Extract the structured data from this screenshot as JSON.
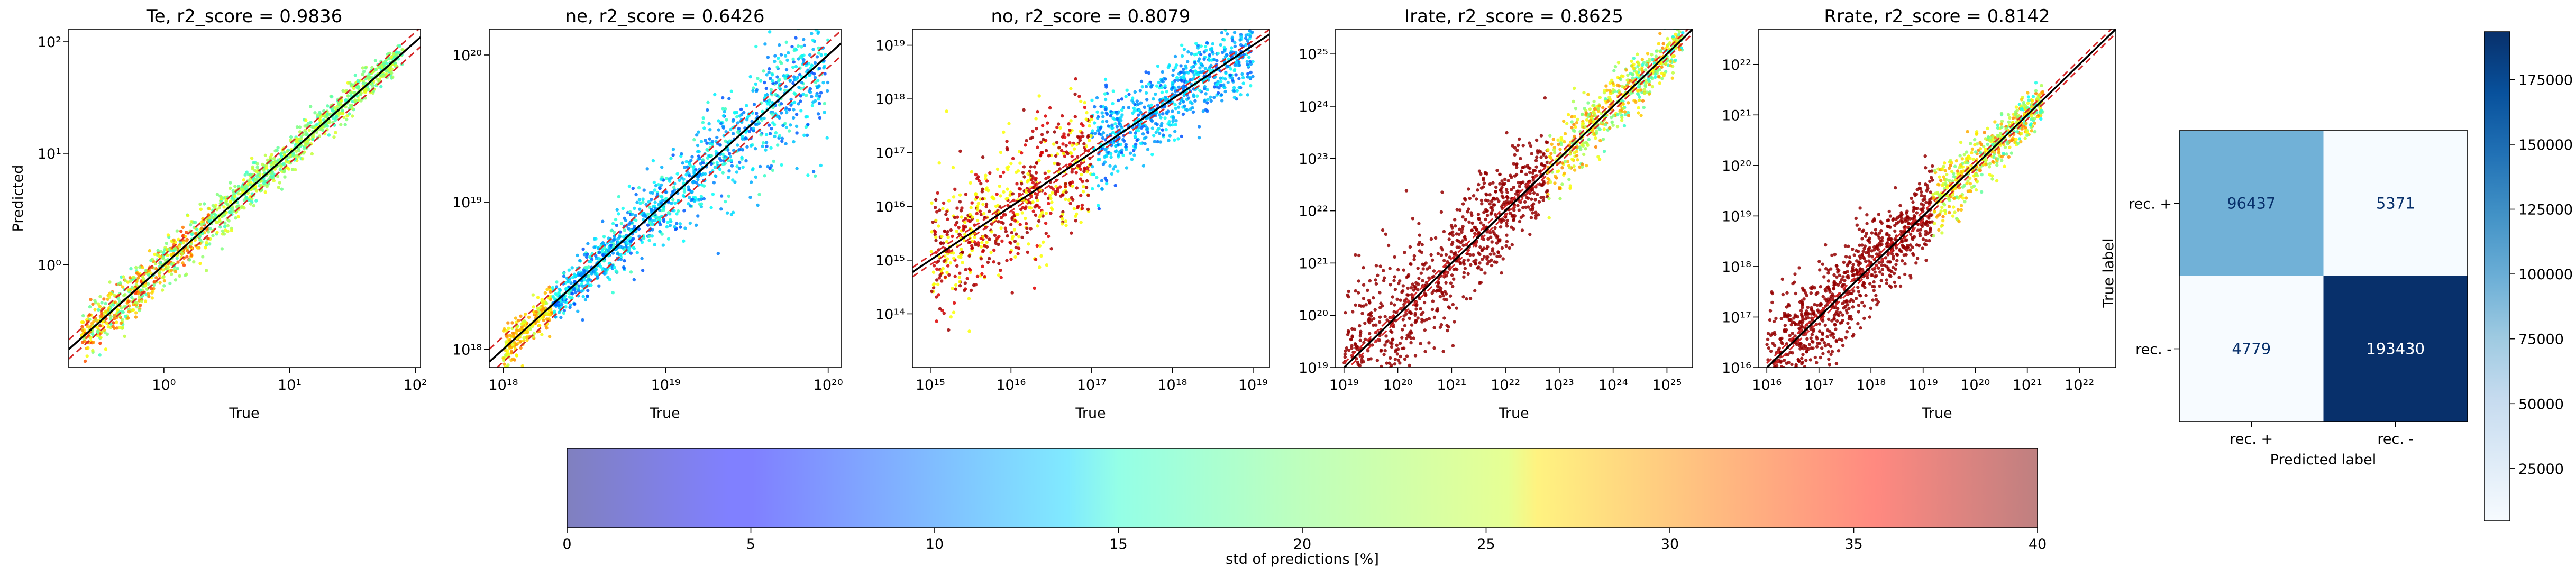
{
  "chart_data": [
    {
      "type": "scatter",
      "title": "Te, r2_score = 0.9836",
      "xlabel": "True",
      "ylabel": "Predicted",
      "xscale": "log",
      "yscale": "log",
      "xlim": [
        0.175,
        110
      ],
      "ylim": [
        0.12,
        130
      ],
      "xticks": [
        {
          "v": 1,
          "label": "10⁰"
        },
        {
          "v": 10,
          "label": "10¹"
        },
        {
          "v": 100,
          "label": "10²"
        }
      ],
      "yticks": [
        {
          "v": 1,
          "label": "10⁰"
        },
        {
          "v": 10,
          "label": "10¹"
        },
        {
          "v": 100,
          "label": "10²"
        }
      ],
      "data_range": [
        0.22,
        80
      ],
      "point_spread_log": 0.1,
      "point_color_levels": [
        0.82,
        0.55,
        0.42
      ],
      "guide_lines": {
        "identity": "black",
        "offset": "red dashed"
      }
    },
    {
      "type": "scatter",
      "title": "ne, r2_score = 0.6426",
      "xlabel": "True",
      "ylabel": "",
      "xscale": "log",
      "yscale": "log",
      "xlim": [
        8.2e+17,
        1.2e+20
      ],
      "ylim": [
        7.5e+17,
        1.5e+20
      ],
      "xticks": [
        {
          "v": 1e+18,
          "label": "10¹⁸"
        },
        {
          "v": 1e+19,
          "label": "10¹⁹"
        },
        {
          "v": 1e+20,
          "label": "10²⁰"
        }
      ],
      "yticks": [
        {
          "v": 1e+18,
          "label": "10¹⁸"
        },
        {
          "v": 1e+19,
          "label": "10¹⁹"
        },
        {
          "v": 1e+20,
          "label": "10²⁰"
        }
      ],
      "data_range": [
        1e+18,
        1e+20
      ],
      "point_spread_log": 0.12,
      "point_color_levels": [
        0.3,
        0.55,
        0.2
      ],
      "guide_lines": {
        "identity": "black",
        "offset": "red dashed"
      }
    },
    {
      "type": "scatter",
      "title": "no, r2_score = 0.8079",
      "xlabel": "True",
      "ylabel": "",
      "xscale": "log",
      "yscale": "log",
      "xlim": [
        600000000000000.0,
        1.6e+19
      ],
      "ylim": [
        10000000000000.0,
        2e+19
      ],
      "xticks": [
        {
          "v": 1000000000000000.0,
          "label": "10¹⁵"
        },
        {
          "v": 1e+16,
          "label": "10¹⁶"
        },
        {
          "v": 1e+17,
          "label": "10¹⁷"
        },
        {
          "v": 1e+18,
          "label": "10¹⁸"
        },
        {
          "v": 1e+19,
          "label": "10¹⁹"
        }
      ],
      "yticks": [
        {
          "v": 100000000000000.0,
          "label": "10¹⁴"
        },
        {
          "v": 1000000000000000.0,
          "label": "10¹⁵"
        },
        {
          "v": 1e+16,
          "label": "10¹⁶"
        },
        {
          "v": 1e+17,
          "label": "10¹⁷"
        },
        {
          "v": 1e+18,
          "label": "10¹⁸"
        },
        {
          "v": 1e+19,
          "label": "10¹⁹"
        }
      ],
      "data_range": [
        1000000000000000.0,
        1e+19
      ],
      "point_spread_log": 0.35,
      "point_color_levels": [
        0.2,
        0.62,
        0.9
      ],
      "guide_lines": {
        "identity": "black",
        "offset": "red dashed"
      }
    },
    {
      "type": "scatter",
      "title": "Irate, r2_score = 0.8625",
      "xlabel": "True",
      "ylabel": "",
      "xscale": "log",
      "yscale": "log",
      "xlim": [
        7e+18,
        3e+25
      ],
      "ylim": [
        1e+19,
        3e+25
      ],
      "xticks": [
        {
          "v": 1e+19,
          "label": "10¹⁹"
        },
        {
          "v": 1e+20,
          "label": "10²⁰"
        },
        {
          "v": 1e+21,
          "label": "10²¹"
        },
        {
          "v": 1e+22,
          "label": "10²²"
        },
        {
          "v": 1e+23,
          "label": "10²³"
        },
        {
          "v": 1e+24,
          "label": "10²⁴"
        },
        {
          "v": 1e+25,
          "label": "10²⁵"
        }
      ],
      "yticks": [
        {
          "v": 1e+19,
          "label": "10¹⁹"
        },
        {
          "v": 1e+20,
          "label": "10²⁰"
        },
        {
          "v": 1e+21,
          "label": "10²¹"
        },
        {
          "v": 1e+22,
          "label": "10²²"
        },
        {
          "v": 1e+23,
          "label": "10²³"
        },
        {
          "v": 1e+24,
          "label": "10²⁴"
        },
        {
          "v": 1e+25,
          "label": "10²⁵"
        }
      ],
      "data_range": [
        1e+19,
        2e+25
      ],
      "point_spread_log": 0.45,
      "point_color_levels": [
        0.98,
        0.75,
        0.4
      ],
      "guide_lines": {
        "identity": "black",
        "offset": "red dashed"
      }
    },
    {
      "type": "scatter",
      "title": "Rrate, r2_score = 0.8142",
      "xlabel": "True",
      "ylabel": "",
      "xscale": "log",
      "yscale": "log",
      "xlim": [
        7000000000000000.0,
        5e+22
      ],
      "ylim": [
        1e+16,
        5e+22
      ],
      "xticks": [
        {
          "v": 1e+16,
          "label": "10¹⁶"
        },
        {
          "v": 1e+17,
          "label": "10¹⁷"
        },
        {
          "v": 1e+18,
          "label": "10¹⁸"
        },
        {
          "v": 1e+19,
          "label": "10¹⁹"
        },
        {
          "v": 1e+20,
          "label": "10²⁰"
        },
        {
          "v": 1e+21,
          "label": "10²¹"
        },
        {
          "v": 1e+22,
          "label": "10²²"
        }
      ],
      "yticks": [
        {
          "v": 1e+16,
          "label": "10¹⁶"
        },
        {
          "v": 1e+17,
          "label": "10¹⁷"
        },
        {
          "v": 1e+18,
          "label": "10¹⁸"
        },
        {
          "v": 1e+19,
          "label": "10¹⁹"
        },
        {
          "v": 1e+20,
          "label": "10²⁰"
        },
        {
          "v": 1e+21,
          "label": "10²¹"
        },
        {
          "v": 1e+22,
          "label": "10²²"
        }
      ],
      "data_range": [
        1e+16,
        2e+21
      ],
      "point_spread_log": 0.4,
      "point_color_levels": [
        0.98,
        0.75,
        0.45
      ],
      "guide_lines": {
        "identity": "black",
        "offset": "red dashed"
      }
    },
    {
      "type": "heatmap",
      "title": "",
      "xlabel": "Predicted label",
      "ylabel": "True label",
      "x_categories": [
        "rec. +",
        "rec. -"
      ],
      "y_categories": [
        "rec. +",
        "rec. -"
      ],
      "values": [
        [
          96437,
          5371
        ],
        [
          4779,
          193430
        ]
      ],
      "colormap": "Blues",
      "colorbar": {
        "range": [
          4779,
          193430
        ],
        "ticks": [
          25000,
          50000,
          75000,
          100000,
          125000,
          150000,
          175000
        ],
        "tick_labels": [
          "25000",
          "50000",
          "75000",
          "100000",
          "125000",
          "150000",
          "175000"
        ]
      }
    }
  ],
  "colorbar": {
    "label": "std of predictions [%]",
    "range": [
      0,
      40
    ],
    "ticks": [
      0,
      5,
      10,
      15,
      20,
      25,
      30,
      35,
      40
    ],
    "tick_labels": [
      "0",
      "5",
      "10",
      "15",
      "20",
      "25",
      "30",
      "35",
      "40"
    ],
    "colormap": "jet",
    "alpha": 0.5
  },
  "colors": {
    "identity_line": "#000000",
    "offset_line": "#d62728",
    "axes": "#000000",
    "cell_text_light": "#08306b",
    "cell_text_dark": "#ffffff"
  }
}
